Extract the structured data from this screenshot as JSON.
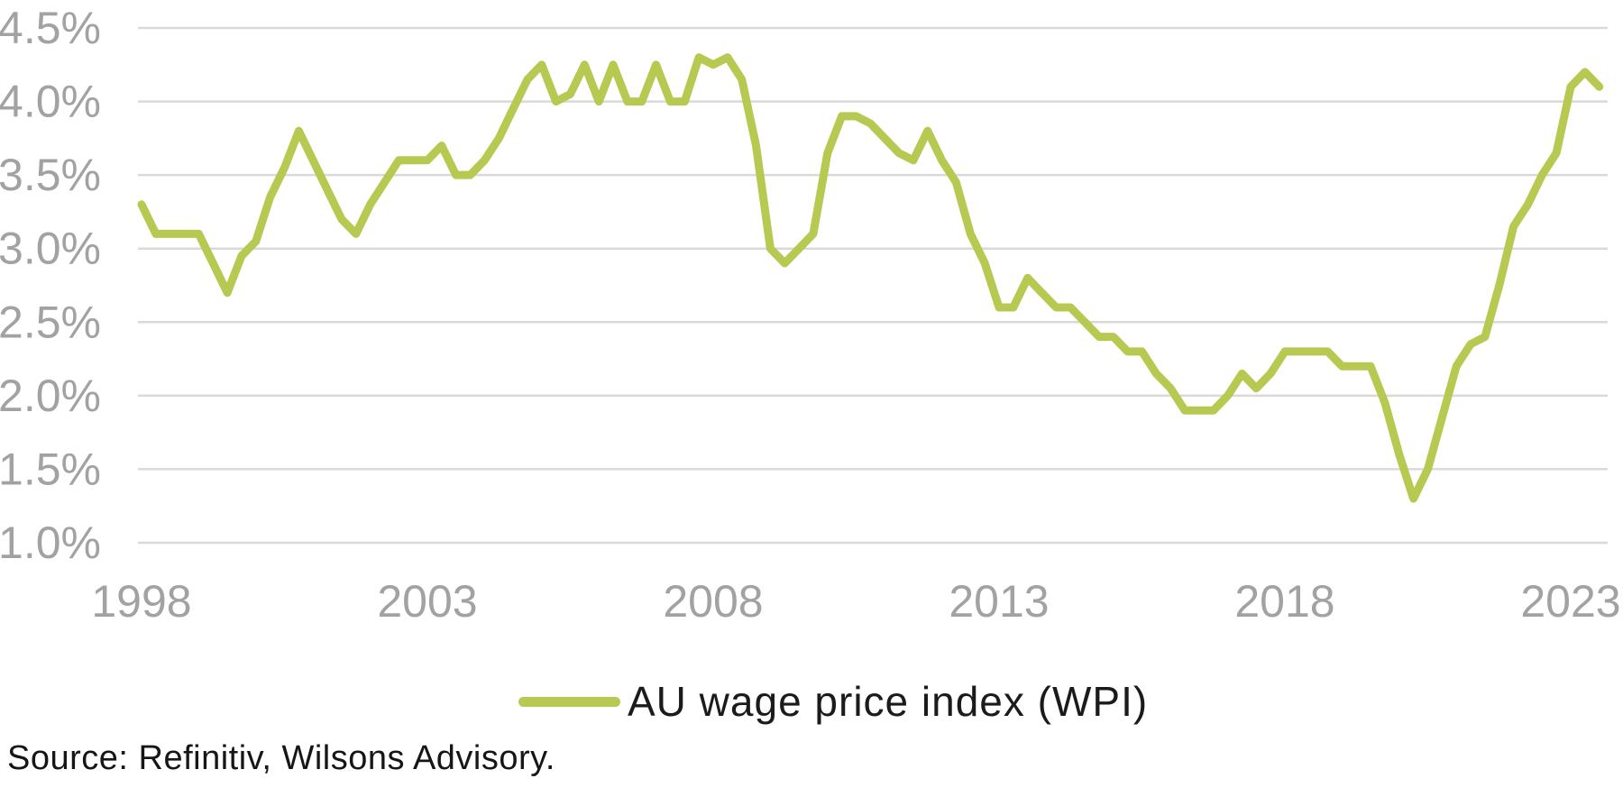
{
  "source_note": "Source: Refinitiv, Wilsons Advisory.",
  "legend": {
    "label": "AU wage price index (WPI)"
  },
  "colors": {
    "series": "#b8c952",
    "gridline": "#d9d9d9",
    "axis_label": "#a2a2a2",
    "legend_text": "#1b1b1b",
    "source_text": "#161616",
    "background": "#ffffff"
  },
  "chart_data": {
    "type": "line",
    "title": "",
    "xlabel": "",
    "ylabel": "",
    "grid": true,
    "legend_position": "bottom",
    "ylim": [
      1.0,
      4.5
    ],
    "x_ticks": [
      1998,
      2003,
      2008,
      2013,
      2018,
      2023
    ],
    "y_ticks": [
      {
        "value": 4.5,
        "label": "4.5%"
      },
      {
        "value": 4.0,
        "label": "4.0%"
      },
      {
        "value": 3.5,
        "label": "3.5%"
      },
      {
        "value": 3.0,
        "label": "3.0%"
      },
      {
        "value": 2.5,
        "label": "2.5%"
      },
      {
        "value": 2.0,
        "label": "2.0%"
      },
      {
        "value": 1.5,
        "label": "1.5%"
      },
      {
        "value": 1.0,
        "label": "1.0%"
      }
    ],
    "series": [
      {
        "name": "AU wage price index (WPI)",
        "color": "#b8c952",
        "frequency": "quarterly",
        "start": "1998Q1",
        "end": "2023Q3",
        "values": [
          3.3,
          3.1,
          3.1,
          3.1,
          3.1,
          2.9,
          2.7,
          2.95,
          3.05,
          3.35,
          3.55,
          3.8,
          3.6,
          3.4,
          3.2,
          3.1,
          3.3,
          3.45,
          3.6,
          3.6,
          3.6,
          3.7,
          3.5,
          3.5,
          3.6,
          3.75,
          3.95,
          4.15,
          4.25,
          4.0,
          4.05,
          4.25,
          4.0,
          4.25,
          4.0,
          4.0,
          4.25,
          4.0,
          4.0,
          4.3,
          4.25,
          4.3,
          4.15,
          3.7,
          3.0,
          2.9,
          3.0,
          3.1,
          3.65,
          3.9,
          3.9,
          3.85,
          3.75,
          3.65,
          3.6,
          3.8,
          3.6,
          3.45,
          3.1,
          2.9,
          2.6,
          2.6,
          2.8,
          2.7,
          2.6,
          2.6,
          2.5,
          2.4,
          2.4,
          2.3,
          2.3,
          2.15,
          2.05,
          1.9,
          1.9,
          1.9,
          2.0,
          2.15,
          2.05,
          2.15,
          2.3,
          2.3,
          2.3,
          2.3,
          2.2,
          2.2,
          2.2,
          1.95,
          1.6,
          1.3,
          1.5,
          1.85,
          2.2,
          2.35,
          2.4,
          2.75,
          3.15,
          3.3,
          3.5,
          3.65,
          4.1,
          4.2,
          4.1
        ]
      }
    ]
  }
}
